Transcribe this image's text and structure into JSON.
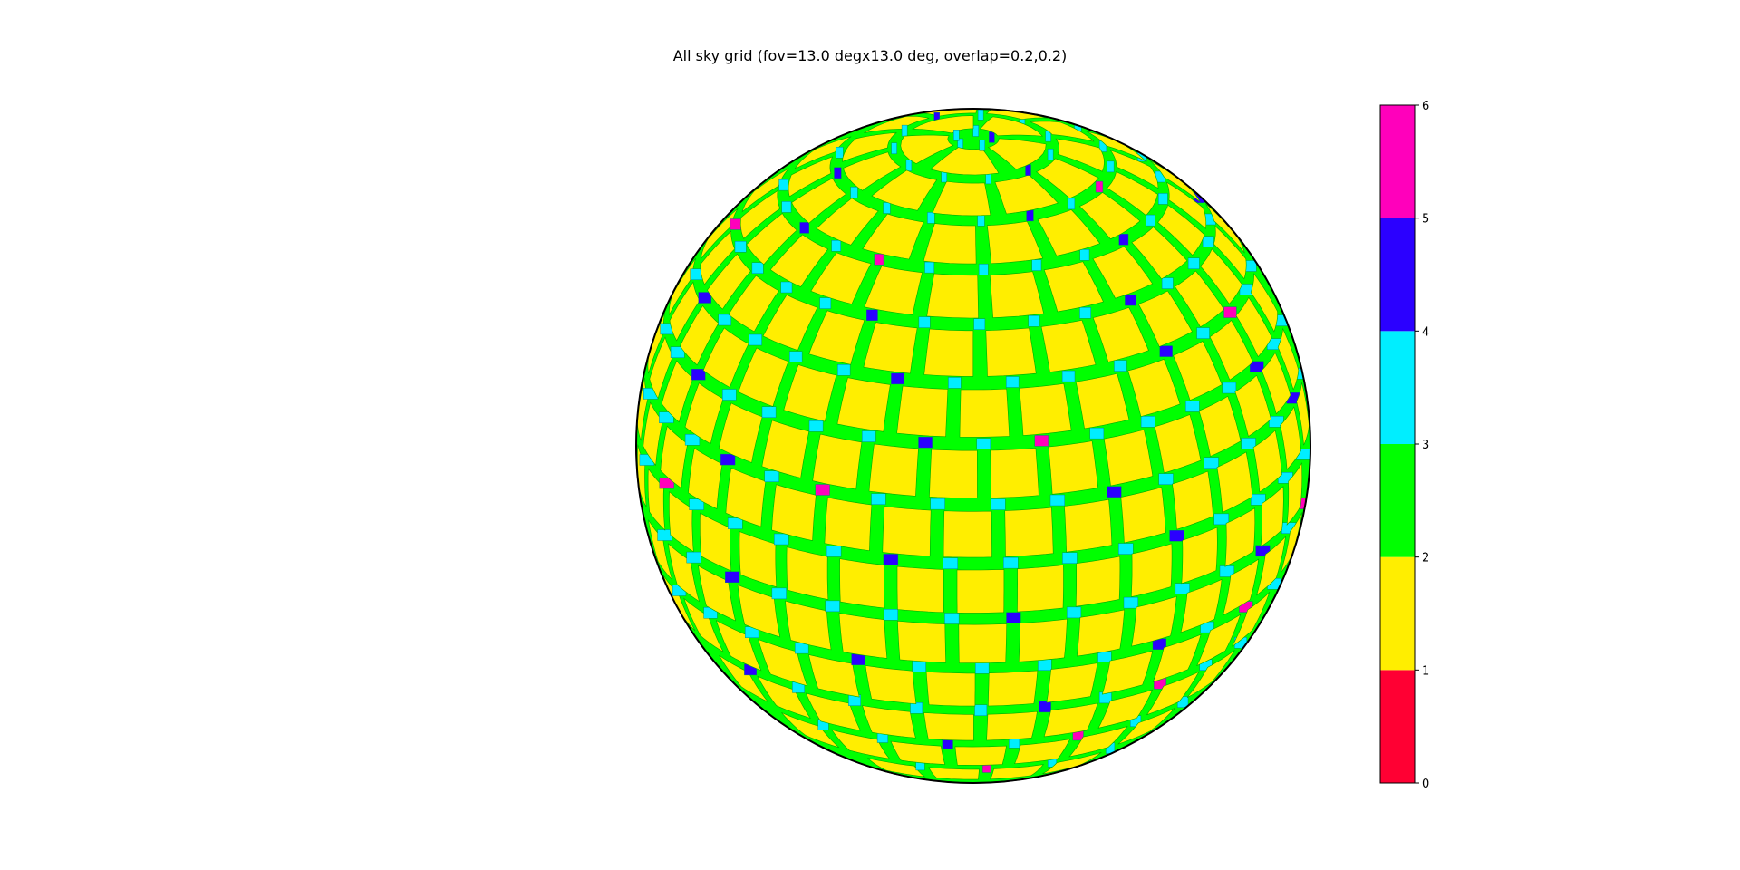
{
  "chart_data": {
    "type": "heatmap",
    "title": "All sky grid (fov=13.0 degx13.0 deg, overlap=0.2,0.2)",
    "colorbar": {
      "ticks": [
        "0",
        "1",
        "2",
        "3",
        "4",
        "5",
        "6"
      ],
      "range": [
        0,
        6
      ],
      "bins": [
        {
          "from": 0,
          "to": 1,
          "color": "#ff0033"
        },
        {
          "from": 1,
          "to": 2,
          "color": "#ffee00"
        },
        {
          "from": 2,
          "to": 3,
          "color": "#00ff00"
        },
        {
          "from": 3,
          "to": 4,
          "color": "#00eeff"
        },
        {
          "from": 4,
          "to": 5,
          "color": "#2b00ff"
        },
        {
          "from": 5,
          "to": 6,
          "color": "#ff00bb"
        }
      ]
    },
    "grid": {
      "fov_deg": [
        13.0,
        13.0
      ],
      "overlap": [
        0.2,
        0.2
      ],
      "tile_count_color": "#ffee00",
      "overlap_count_color": "#00ff00",
      "triple_overlap_color": "#00eeff",
      "quad_overlap_color": "#2b00ff",
      "max_overlap_color": "#ff00bb"
    },
    "axes": "off",
    "grid_lines": false
  }
}
